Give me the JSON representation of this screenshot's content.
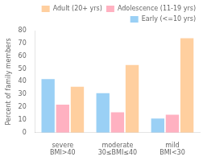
{
  "chart_data": {
    "type": "bar",
    "categories": [
      "severe\nBMI>40",
      "moderate\n30≤BMI≤40",
      "mild\nBMI<30"
    ],
    "series": [
      {
        "name": "Early (<=10 yrs)",
        "values": [
          42,
          31,
          11
        ]
      },
      {
        "name": "Adolescence (11-19 yrs)",
        "values": [
          22,
          16,
          14
        ]
      },
      {
        "name": "Adult (20+ yrs)",
        "values": [
          36,
          53,
          74
        ]
      }
    ],
    "ylabel": "Percent of family members",
    "ylim": [
      0,
      80
    ],
    "yticks": [
      0,
      10,
      20,
      30,
      40,
      50,
      60,
      70,
      80
    ],
    "grid": false,
    "legend": "upper right"
  }
}
